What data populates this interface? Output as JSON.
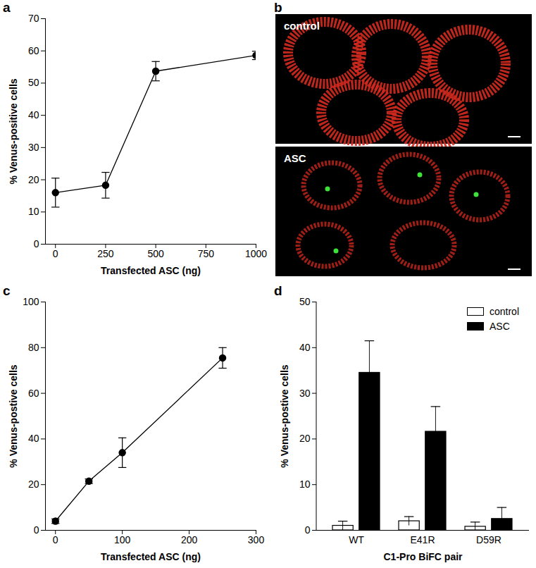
{
  "chart_data": [
    {
      "type": "line",
      "title": "a",
      "x": [
        0,
        250,
        500,
        1000
      ],
      "values": [
        16,
        18.3,
        53.7,
        58.6
      ],
      "errors": [
        4.5,
        4,
        3,
        1.3
      ],
      "x_label": "Transfected ASC (ng)",
      "y_label": "% Venus-positive cells",
      "xlim": [
        -50,
        1000
      ],
      "xticks": [
        0,
        250,
        500,
        750,
        1000
      ],
      "ylim": [
        0,
        70
      ],
      "yticks": [
        0,
        10,
        20,
        30,
        40,
        50,
        60,
        70
      ],
      "color": "#000000",
      "marker": "circle"
    },
    {
      "type": "image",
      "title": "b",
      "labels": [
        "control",
        "ASC"
      ]
    },
    {
      "type": "line",
      "title": "c",
      "x": [
        0,
        50,
        100,
        250
      ],
      "values": [
        4,
        21.5,
        34,
        75.5
      ],
      "errors": [
        1,
        1,
        6.5,
        4.5
      ],
      "x_label": "Transfected ASC (ng)",
      "y_label": "% Venus-postive cells",
      "xlim": [
        -15,
        300
      ],
      "xticks": [
        0,
        100,
        200,
        300
      ],
      "ylim": [
        0,
        100
      ],
      "yticks": [
        0,
        20,
        40,
        60,
        80,
        100
      ],
      "color": "#000000",
      "marker": "circle"
    },
    {
      "type": "bar",
      "title": "d",
      "categories": [
        "WT",
        "E41R",
        "D59R"
      ],
      "series": [
        {
          "name": "control",
          "color": "#ffffff",
          "values": [
            1,
            2,
            0.8
          ],
          "errors": [
            1,
            1,
            1
          ]
        },
        {
          "name": "ASC",
          "color": "#000000",
          "values": [
            34.5,
            21.6,
            2.5
          ],
          "errors": [
            7,
            5.5,
            2.5
          ]
        }
      ],
      "x_label": "C1-Pro BiFC pair",
      "y_label": "% Venus-postive cells",
      "ylim": [
        0,
        50
      ],
      "yticks": [
        0,
        10,
        20,
        30,
        40,
        50
      ],
      "legend": "top-right"
    }
  ]
}
